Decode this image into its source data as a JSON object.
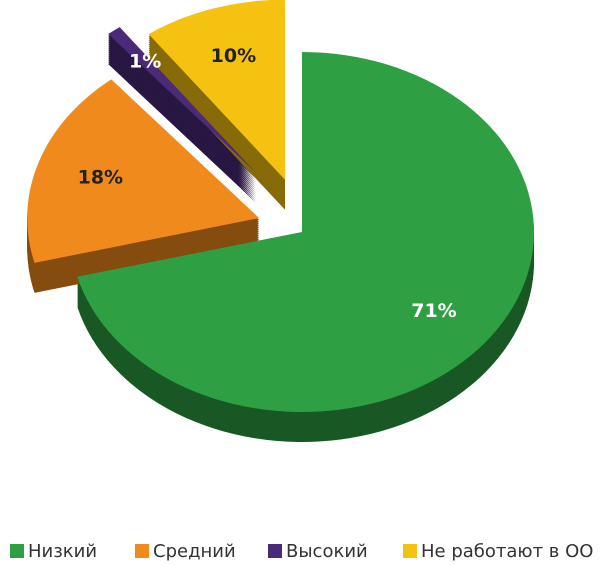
{
  "chart_data": {
    "type": "pie",
    "categories": [
      "Низкий",
      "Средний",
      "Высокий",
      "Не работают в ОО"
    ],
    "values": [
      71,
      18,
      1,
      10
    ],
    "value_labels": [
      "71%",
      "18%",
      "1%",
      "10%"
    ],
    "colors": [
      "#2ea043",
      "#f18a1c",
      "#4b2a7a",
      "#f5c211"
    ],
    "legend": "bottom"
  }
}
